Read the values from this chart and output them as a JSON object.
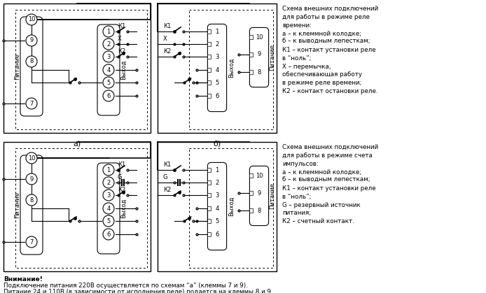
{
  "bg_color": "#ffffff",
  "right_text_top": "Схема внешних подключений\nдля работы в режиме реле\nвремени:\nа – к клеммной колодке;\nб – к выводным лепесткам;\nК1 – контакт установки реле\nв “ноль”;\nХ – перемычка,\nобеспечивающая работу\nв режиме реле времени;\nК2 – контакт остановки реле.",
  "right_text_bottom": "Схема внешних подключений\nдля работы в режиме счета\nимпульсов:\nа – к клеммной колодке;\nб – к выводным лепесткам;\nК1 – контакт установки реле\nв “ноль”;\nG – резервный источник\nпитания;\nК2 – счетный контакт.",
  "bottom_text_1": "Внимание!",
  "bottom_text_2": "Подключение питания 220В осуществляется по схемам “а” (клеммы 7 и 9).",
  "bottom_text_3": "Питание 24 и 110В (в зависимости от исполнения реле) подается на клеммы 8 и 9.",
  "label_a": "а)",
  "label_b": "б)"
}
